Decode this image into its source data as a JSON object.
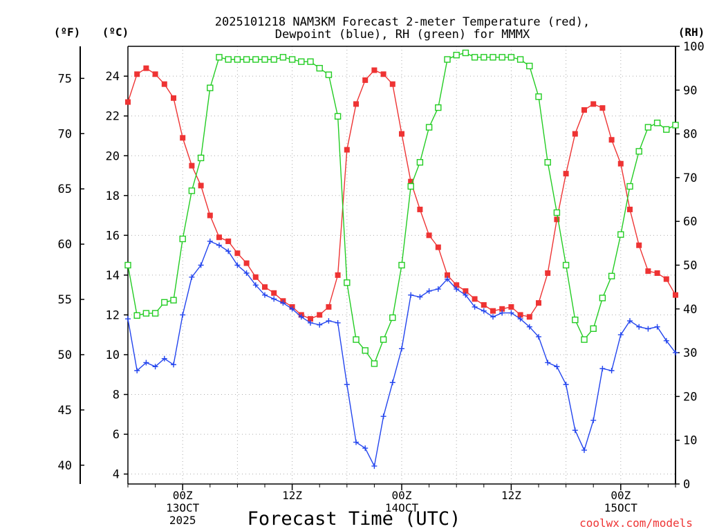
{
  "chart_data": {
    "type": "line",
    "title": [
      "2025101218 NAM3KM Forecast 2-meter Temperature (red),",
      "Dewpoint (blue), RH (green) for MMMX"
    ],
    "xlabel": "Forecast Time (UTC)",
    "credit": "coolwx.com/models",
    "unit_labels": {
      "fahrenheit": "(ºF)",
      "celsius": "(ºC)",
      "rh": "(RH)"
    },
    "x_unit": "forecast hour",
    "xlim": [
      6,
      66
    ],
    "ylim_c": [
      3.5,
      25.5
    ],
    "ylim_rh": [
      0,
      100
    ],
    "ticks_c": [
      4,
      6,
      8,
      10,
      12,
      14,
      16,
      18,
      20,
      22,
      24
    ],
    "ticks_f": [
      40,
      45,
      50,
      55,
      60,
      65,
      70,
      75
    ],
    "ticks_rh": [
      0,
      10,
      20,
      30,
      40,
      50,
      60,
      70,
      80,
      90,
      100
    ],
    "x_ticks": [
      {
        "hour": 12,
        "lines": [
          "00Z",
          "13OCT",
          "2025"
        ]
      },
      {
        "hour": 24,
        "lines": [
          "12Z"
        ]
      },
      {
        "hour": 36,
        "lines": [
          "00Z",
          "14OCT"
        ]
      },
      {
        "hour": 48,
        "lines": [
          "12Z"
        ]
      },
      {
        "hour": 60,
        "lines": [
          "00Z",
          "15OCT"
        ]
      }
    ],
    "x": [
      6,
      7,
      8,
      9,
      10,
      11,
      12,
      13,
      14,
      15,
      16,
      17,
      18,
      19,
      20,
      21,
      22,
      23,
      24,
      25,
      26,
      27,
      28,
      29,
      30,
      31,
      32,
      33,
      34,
      35,
      36,
      37,
      38,
      39,
      40,
      41,
      42,
      43,
      44,
      45,
      46,
      47,
      48,
      49,
      50,
      51,
      52,
      53,
      54,
      55,
      56,
      57,
      58,
      59,
      60,
      61,
      62,
      63,
      64,
      65,
      66
    ],
    "series": [
      {
        "name": "Temperature",
        "unit": "C",
        "color": "#ee3333",
        "marker": "filled-square",
        "values": [
          22.7,
          24.1,
          24.4,
          24.1,
          23.6,
          22.9,
          20.9,
          19.5,
          18.5,
          17.0,
          15.9,
          15.7,
          15.1,
          14.6,
          13.9,
          13.4,
          13.1,
          12.7,
          12.4,
          12.0,
          11.8,
          12.0,
          12.4,
          14.0,
          20.3,
          22.6,
          23.8,
          24.3,
          24.1,
          23.6,
          21.1,
          18.7,
          17.3,
          16.0,
          15.4,
          14.0,
          13.5,
          13.2,
          12.8,
          12.5,
          12.2,
          12.3,
          12.4,
          12.0,
          11.9,
          12.6,
          14.1,
          16.8,
          19.1,
          21.1,
          22.3,
          22.6,
          22.4,
          20.8,
          19.6,
          17.3,
          15.5,
          14.2,
          14.1,
          13.8,
          13.0
        ]
      },
      {
        "name": "Dewpoint",
        "unit": "C",
        "color": "#2244ee",
        "marker": "plus",
        "values": [
          11.8,
          9.2,
          9.6,
          9.4,
          9.8,
          9.5,
          12.0,
          13.9,
          14.5,
          15.7,
          15.5,
          15.2,
          14.5,
          14.1,
          13.5,
          13.0,
          12.8,
          12.6,
          12.3,
          11.9,
          11.6,
          11.5,
          11.7,
          11.6,
          8.5,
          5.6,
          5.3,
          4.4,
          6.9,
          8.6,
          10.3,
          13.0,
          12.9,
          13.2,
          13.3,
          13.8,
          13.3,
          13.0,
          12.4,
          12.2,
          11.9,
          12.1,
          12.1,
          11.8,
          11.4,
          10.9,
          9.6,
          9.4,
          8.5,
          6.2,
          5.2,
          6.7,
          9.3,
          9.2,
          11.0,
          11.7,
          11.4,
          11.3,
          11.4,
          10.7,
          10.1
        ]
      },
      {
        "name": "RH",
        "unit": "%",
        "color": "#22cc22",
        "marker": "open-square",
        "values": [
          50,
          38.5,
          39,
          39,
          41.5,
          42,
          56,
          67,
          74.5,
          90.5,
          97.5,
          97,
          97,
          97,
          97,
          97,
          97,
          97.5,
          97,
          96.5,
          96.5,
          95,
          93.5,
          84,
          46,
          33,
          30.5,
          27.5,
          33,
          38,
          50,
          68,
          73.5,
          81.5,
          86,
          97,
          98,
          98.5,
          97.5,
          97.5,
          97.5,
          97.5,
          97.5,
          97,
          95.5,
          88.5,
          73.5,
          62,
          50,
          37.5,
          33,
          35.5,
          42.5,
          47.5,
          57,
          68,
          76,
          81.5,
          82.5,
          81,
          82
        ]
      }
    ]
  }
}
